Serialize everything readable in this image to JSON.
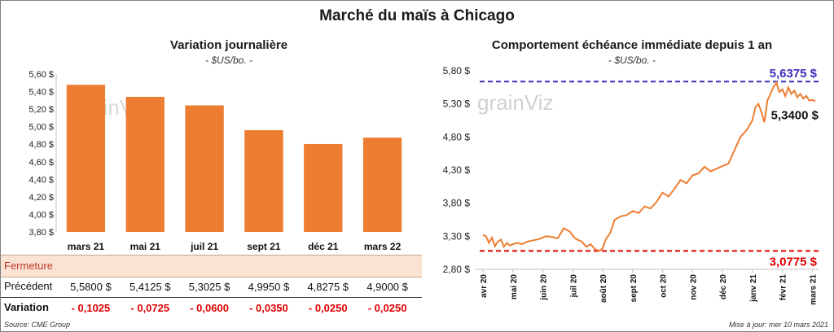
{
  "title": "Marché du maïs à Chicago",
  "source": "Source: CME Group",
  "updated": "Mise à jour: mer 10 mars 2021",
  "watermark": "grainViz",
  "colors": {
    "bar": "#ed7d31",
    "line": "#ed7d31",
    "high": "#3b2fbf",
    "low": "#e00000",
    "close_row": "#fbe3d3"
  },
  "chart_data": [
    {
      "type": "bar",
      "title": "Variation journalière",
      "unit": "- $US/bo. -",
      "categories": [
        "mars 21",
        "mai 21",
        "juil 21",
        "sept 21",
        "déc 21",
        "mars 22"
      ],
      "values": [
        5.4775,
        5.34,
        5.2425,
        4.96,
        4.8025,
        4.875
      ],
      "ylim": [
        3.8,
        5.6
      ],
      "yticks": [
        "5,60 $",
        "5,40 $",
        "5,20 $",
        "5,00 $",
        "4,80 $",
        "4,60 $",
        "4,40 $",
        "4,20 $",
        "4,00 $",
        "3,80 $"
      ],
      "table": {
        "labels": [
          "Fermeture",
          "Précédent",
          "Variation"
        ],
        "fermeture": [
          "5,4775  $",
          "5,3400  $",
          "5,2425  $",
          "4,9600  $",
          "4,8025  $",
          "4,8750  $"
        ],
        "precedent": [
          "5,5800  $",
          "5,4125  $",
          "5,3025  $",
          "4,9950  $",
          "4,8275  $",
          "4,9000  $"
        ],
        "variation": [
          "- 0,1025",
          "- 0,0725",
          "- 0,0600",
          "- 0,0350",
          "- 0,0250",
          "- 0,0250"
        ]
      }
    },
    {
      "type": "line",
      "title": "Comportement  échéance immédiate depuis 1 an",
      "unit": "- $US/bo. -",
      "ylim": [
        2.8,
        5.8
      ],
      "yticks": [
        "5,80 $",
        "5,30 $",
        "4,80 $",
        "4,30 $",
        "3,80 $",
        "3,30 $",
        "2,80 $"
      ],
      "xticks": [
        "avr 20",
        "mai 20",
        "juin 20",
        "juil 20",
        "août 20",
        "sept 20",
        "oct 20",
        "nov 20",
        "déc 20",
        "janv 21",
        "févr 21",
        "mars 21"
      ],
      "high": {
        "value": 5.6375,
        "label": "5,6375 $"
      },
      "low": {
        "value": 3.0775,
        "label": "3,0775 $"
      },
      "last": {
        "value": 5.34,
        "label": "5,3400 $"
      },
      "x": [
        0,
        0.1,
        0.2,
        0.3,
        0.4,
        0.5,
        0.6,
        0.7,
        0.8,
        0.9,
        1,
        1.15,
        1.3,
        1.5,
        1.7,
        1.9,
        2.1,
        2.3,
        2.5,
        2.7,
        2.9,
        3.05,
        3.15,
        3.3,
        3.45,
        3.6,
        3.75,
        3.9,
        4.0,
        4.1,
        4.25,
        4.4,
        4.6,
        4.8,
        5.0,
        5.2,
        5.4,
        5.6,
        5.8,
        6.0,
        6.2,
        6.4,
        6.6,
        6.8,
        7.0,
        7.2,
        7.4,
        7.6,
        7.8,
        8.0,
        8.2,
        8.4,
        8.6,
        8.8,
        9.0,
        9.1,
        9.2,
        9.3,
        9.4,
        9.5,
        9.6,
        9.7,
        9.8,
        9.9,
        10.0,
        10.1,
        10.2,
        10.3,
        10.4,
        10.5,
        10.6,
        10.7,
        10.8,
        10.9,
        11.0,
        11.1
      ],
      "y": [
        3.32,
        3.3,
        3.2,
        3.28,
        3.15,
        3.22,
        3.25,
        3.14,
        3.2,
        3.16,
        3.18,
        3.2,
        3.18,
        3.22,
        3.24,
        3.26,
        3.3,
        3.29,
        3.27,
        3.42,
        3.37,
        3.28,
        3.25,
        3.22,
        3.14,
        3.18,
        3.1,
        3.08,
        3.12,
        3.25,
        3.35,
        3.55,
        3.6,
        3.62,
        3.68,
        3.65,
        3.75,
        3.72,
        3.82,
        3.96,
        3.9,
        4.02,
        4.15,
        4.1,
        4.22,
        4.25,
        4.35,
        4.28,
        4.32,
        4.36,
        4.4,
        4.6,
        4.8,
        4.9,
        5.05,
        5.25,
        5.3,
        5.18,
        5.02,
        5.35,
        5.45,
        5.55,
        5.62,
        5.48,
        5.52,
        5.42,
        5.55,
        5.45,
        5.5,
        5.4,
        5.45,
        5.38,
        5.42,
        5.35,
        5.36,
        5.34
      ]
    }
  ]
}
